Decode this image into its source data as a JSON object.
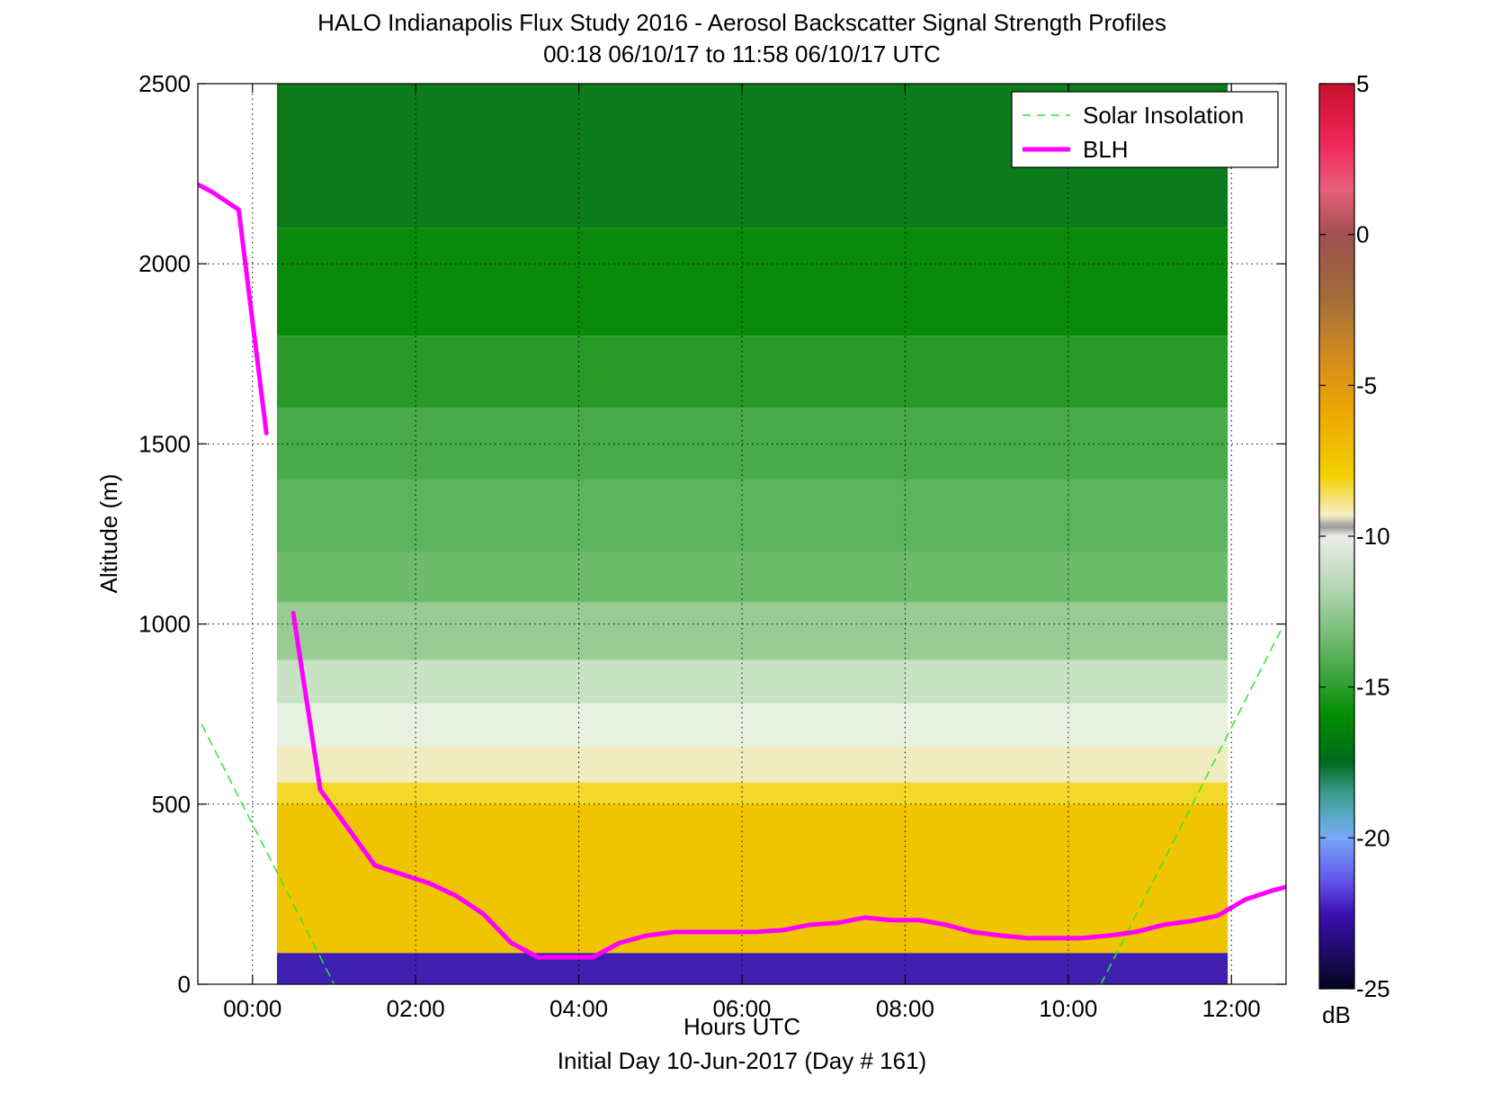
{
  "chart_data": {
    "type": "heatmap",
    "title": "HALO Indianapolis Flux Study 2016 - Aerosol Backscatter Signal Strength Profiles",
    "subtitle": "00:18 06/10/17 to 11:58 06/10/17  UTC",
    "xlabel": "Hours UTC",
    "xlabel2": "Initial Day 10-Jun-2017 (Day # 161)",
    "ylabel": "Altitude (m)",
    "xlim": [
      -0.67,
      12.67
    ],
    "ylim": [
      0,
      2500
    ],
    "x_ticks": [
      0,
      2,
      4,
      6,
      8,
      10,
      12
    ],
    "x_tick_labels": [
      "00:00",
      "02:00",
      "04:00",
      "06:00",
      "08:00",
      "10:00",
      "12:00"
    ],
    "y_ticks": [
      0,
      500,
      1000,
      1500,
      2000,
      2500
    ],
    "y_tick_labels": [
      "0",
      "500",
      "1000",
      "1500",
      "2000",
      "2500"
    ],
    "grid": true,
    "legend_position": "top-right",
    "colorbar": {
      "label": "dB",
      "range": [
        -25,
        5
      ],
      "ticks": [
        5,
        0,
        -5,
        -10,
        -15,
        -20,
        -25
      ],
      "tick_labels": [
        "5",
        "0",
        "-5",
        "-10",
        "-15",
        "-20",
        "-25"
      ],
      "stops": [
        {
          "v": 5,
          "c": "#c8102e"
        },
        {
          "v": 3,
          "c": "#f0285a"
        },
        {
          "v": 1.5,
          "c": "#e8607a"
        },
        {
          "v": 0,
          "c": "#a05050"
        },
        {
          "v": -2,
          "c": "#a06b3a"
        },
        {
          "v": -4,
          "c": "#d08a20"
        },
        {
          "v": -6,
          "c": "#eea800"
        },
        {
          "v": -8,
          "c": "#f2d000"
        },
        {
          "v": -9.3,
          "c": "#f6efc8"
        },
        {
          "v": -9.7,
          "c": "#9a9a9a"
        },
        {
          "v": -10,
          "c": "#ededea"
        },
        {
          "v": -12,
          "c": "#a8d2a8"
        },
        {
          "v": -14,
          "c": "#58b058"
        },
        {
          "v": -16,
          "c": "#008c00"
        },
        {
          "v": -17.5,
          "c": "#006a1e"
        },
        {
          "v": -18.5,
          "c": "#3a9a8a"
        },
        {
          "v": -19.3,
          "c": "#5aaac8"
        },
        {
          "v": -20,
          "c": "#78a8f8"
        },
        {
          "v": -21.5,
          "c": "#6050e8"
        },
        {
          "v": -22.5,
          "c": "#3a10b0"
        },
        {
          "v": -25,
          "c": "#050520"
        }
      ]
    },
    "heatmap": {
      "x_start": 0.3,
      "x_step": 0.333,
      "x_count": 35,
      "z_units": "dB",
      "rows": [
        {
          "y0": 0,
          "y1": 87,
          "c": "#4020b0"
        },
        {
          "y0": 87,
          "y1": 500,
          "c": "#f0c400"
        },
        {
          "y0": 500,
          "y1": 560,
          "c": "#f3d82a"
        },
        {
          "y0": 560,
          "y1": 660,
          "c": "#f0ecc0"
        },
        {
          "y0": 660,
          "y1": 780,
          "c": "#e8f0e0"
        },
        {
          "y0": 780,
          "y1": 900,
          "c": "#c8e2c4"
        },
        {
          "y0": 900,
          "y1": 1060,
          "c": "#98cc94"
        },
        {
          "y0": 1060,
          "y1": 1200,
          "c": "#6cbc6c"
        },
        {
          "y0": 1200,
          "y1": 1400,
          "c": "#5cb45c"
        },
        {
          "y0": 1400,
          "y1": 1600,
          "c": "#48aa48"
        },
        {
          "y0": 1600,
          "y1": 1800,
          "c": "#289a28"
        },
        {
          "y0": 1800,
          "y1": 2100,
          "c": "#0a8a0a"
        },
        {
          "y0": 2100,
          "y1": 2500,
          "c": "#0c7c1a"
        }
      ]
    },
    "series": [
      {
        "name": "Solar Insolation",
        "style": "dashed",
        "color": "#2ee82e",
        "segments": [
          [
            [
              -0.62,
              720
            ],
            [
              1.0,
              0
            ]
          ],
          [
            [
              10.4,
              0
            ],
            [
              12.6,
              980
            ]
          ]
        ]
      },
      {
        "name": "BLH",
        "style": "solid",
        "color": "#ff00ff",
        "segments": [
          [
            [
              -0.67,
              2220
            ],
            [
              -0.5,
              2200
            ],
            [
              -0.17,
              2150
            ],
            [
              0.17,
              1530
            ]
          ],
          [
            [
              0.5,
              1030
            ],
            [
              0.83,
              540
            ],
            [
              1.5,
              330
            ],
            [
              2.17,
              280
            ],
            [
              2.5,
              245
            ],
            [
              2.83,
              195
            ],
            [
              3.17,
              115
            ],
            [
              3.5,
              75
            ],
            [
              3.83,
              75
            ],
            [
              4.17,
              75
            ],
            [
              4.5,
              115
            ],
            [
              4.83,
              135
            ],
            [
              5.17,
              145
            ],
            [
              5.5,
              145
            ],
            [
              6.17,
              145
            ],
            [
              6.5,
              150
            ],
            [
              6.83,
              165
            ],
            [
              7.17,
              170
            ],
            [
              7.5,
              185
            ],
            [
              7.83,
              178
            ],
            [
              8.17,
              178
            ],
            [
              8.5,
              165
            ],
            [
              8.83,
              145
            ],
            [
              9.17,
              135
            ],
            [
              9.5,
              128
            ],
            [
              9.83,
              128
            ],
            [
              10.17,
              128
            ],
            [
              10.5,
              135
            ],
            [
              10.83,
              145
            ],
            [
              11.17,
              165
            ],
            [
              11.5,
              175
            ],
            [
              11.83,
              190
            ],
            [
              12.17,
              235
            ],
            [
              12.5,
              260
            ],
            [
              12.67,
              270
            ]
          ]
        ]
      }
    ]
  }
}
